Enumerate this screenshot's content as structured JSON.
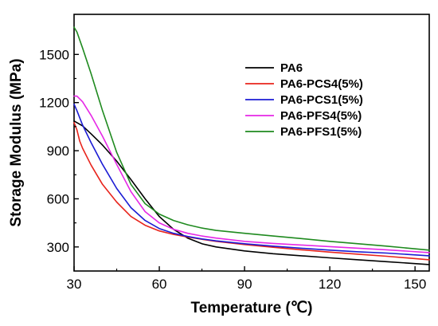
{
  "chart_data": {
    "type": "line",
    "title": "",
    "xlabel": "Temperature (℃)",
    "ylabel": "Storage Modulus (MPa)",
    "xlim": [
      30,
      155
    ],
    "ylim": [
      150,
      1750
    ],
    "xticks": [
      30,
      60,
      90,
      120,
      150
    ],
    "yticks": [
      300,
      600,
      900,
      1200,
      1500
    ],
    "legend_position": "upper-right",
    "grid": false,
    "series": [
      {
        "name": "PA6",
        "color": "#000000",
        "x": [
          30,
          33,
          36,
          40,
          45,
          50,
          55,
          60,
          65,
          70,
          75,
          80,
          90,
          100,
          110,
          120,
          130,
          140,
          155
        ],
        "y": [
          1085,
          1055,
          1005,
          935,
          835,
          720,
          600,
          490,
          410,
          355,
          320,
          300,
          275,
          258,
          245,
          232,
          220,
          208,
          190
        ]
      },
      {
        "name": "PA6-PCS4(5%)",
        "color": "#e8241c",
        "x": [
          30,
          31,
          32,
          33,
          36,
          40,
          45,
          50,
          55,
          60,
          65,
          70,
          75,
          80,
          90,
          100,
          110,
          120,
          130,
          140,
          155
        ],
        "y": [
          1075,
          1030,
          960,
          915,
          810,
          690,
          580,
          490,
          435,
          400,
          378,
          362,
          348,
          335,
          315,
          298,
          282,
          268,
          255,
          242,
          220
        ]
      },
      {
        "name": "PA6-PCS1(5%)",
        "color": "#1c1cd4",
        "x": [
          30,
          31,
          33,
          36,
          40,
          45,
          50,
          55,
          60,
          65,
          70,
          75,
          80,
          90,
          100,
          110,
          120,
          130,
          140,
          155
        ],
        "y": [
          1190,
          1150,
          1060,
          950,
          815,
          665,
          545,
          465,
          415,
          385,
          365,
          350,
          338,
          320,
          305,
          292,
          280,
          270,
          262,
          245
        ]
      },
      {
        "name": "PA6-PFS4(5%)",
        "color": "#e627e6",
        "x": [
          30,
          31,
          33,
          36,
          40,
          45,
          50,
          55,
          60,
          65,
          70,
          75,
          80,
          90,
          100,
          110,
          120,
          130,
          140,
          155
        ],
        "y": [
          1240,
          1240,
          1205,
          1120,
          990,
          815,
          645,
          520,
          450,
          410,
          385,
          368,
          355,
          335,
          322,
          312,
          302,
          292,
          282,
          265
        ]
      },
      {
        "name": "PA6-PFS1(5%)",
        "color": "#1f8a1f",
        "x": [
          30,
          31,
          33,
          36,
          40,
          45,
          50,
          55,
          60,
          65,
          70,
          75,
          80,
          90,
          100,
          110,
          120,
          130,
          140,
          155
        ],
        "y": [
          1670,
          1640,
          1540,
          1380,
          1150,
          890,
          690,
          570,
          505,
          465,
          438,
          418,
          403,
          385,
          368,
          352,
          335,
          320,
          305,
          280
        ]
      }
    ]
  }
}
